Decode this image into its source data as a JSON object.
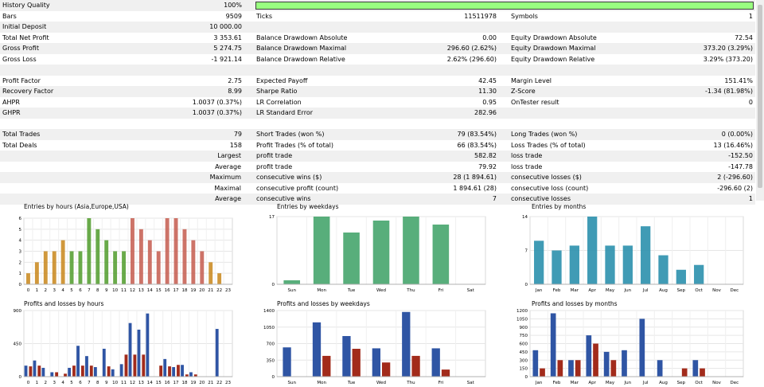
{
  "report": {
    "history_quality": {
      "label": "History Quality",
      "value": "100%"
    },
    "rows": [
      [
        [
          "Bars",
          "9509"
        ],
        [
          "Ticks",
          "11511978"
        ],
        [
          "Symbols",
          "1"
        ]
      ],
      [
        [
          "Initial Deposit",
          "10 000.00"
        ],
        null,
        null
      ],
      [
        [
          "Total Net Profit",
          "3 353.61"
        ],
        [
          "Balance Drawdown Absolute",
          "0.00"
        ],
        [
          "Equity Drawdown Absolute",
          "72.54"
        ]
      ],
      [
        [
          "Gross Profit",
          "5 274.75"
        ],
        [
          "Balance Drawdown Maximal",
          "296.60 (2.62%)"
        ],
        [
          "Equity Drawdown Maximal",
          "373.20 (3.29%)"
        ]
      ],
      [
        [
          "Gross Loss",
          "-1 921.14"
        ],
        [
          "Balance Drawdown Relative",
          "2.62% (296.60)"
        ],
        [
          "Equity Drawdown Relative",
          "3.29% (373.20)"
        ]
      ],
      null,
      [
        [
          "Profit Factor",
          "2.75"
        ],
        [
          "Expected Payoff",
          "42.45"
        ],
        [
          "Margin Level",
          "151.41%"
        ]
      ],
      [
        [
          "Recovery Factor",
          "8.99"
        ],
        [
          "Sharpe Ratio",
          "11.30"
        ],
        [
          "Z-Score",
          "-1.34 (81.98%)"
        ]
      ],
      [
        [
          "AHPR",
          "1.0037 (0.37%)"
        ],
        [
          "LR Correlation",
          "0.95"
        ],
        [
          "OnTester result",
          "0"
        ]
      ],
      [
        [
          "GHPR",
          "1.0037 (0.37%)"
        ],
        [
          "LR Standard Error",
          "282.96"
        ],
        null
      ],
      null,
      [
        [
          "Total Trades",
          "79"
        ],
        [
          "Short Trades (won %)",
          "79 (83.54%)"
        ],
        [
          "Long Trades (won %)",
          "0 (0.00%)"
        ]
      ],
      [
        [
          "Total Deals",
          "158"
        ],
        [
          "Profit Trades (% of total)",
          "66 (83.54%)"
        ],
        [
          "Loss Trades (% of total)",
          "13 (16.46%)"
        ]
      ],
      [
        [
          "Largest",
          ""
        ],
        [
          "profit trade",
          "582.82"
        ],
        [
          "loss trade",
          "-152.50"
        ]
      ],
      [
        [
          "Average",
          ""
        ],
        [
          "profit trade",
          "79.92"
        ],
        [
          "loss trade",
          "-147.78"
        ]
      ],
      [
        [
          "Maximum",
          ""
        ],
        [
          "consecutive wins ($)",
          "28 (1 894.61)"
        ],
        [
          "consecutive losses ($)",
          "2 (-296.60)"
        ]
      ],
      [
        [
          "Maximal",
          ""
        ],
        [
          "consecutive profit (count)",
          "1 894.61 (28)"
        ],
        [
          "consecutive loss (count)",
          "-296.60 (2)"
        ]
      ],
      [
        [
          "Average",
          ""
        ],
        [
          "consecutive wins",
          "7"
        ],
        [
          "consecutive losses",
          "1"
        ]
      ]
    ]
  },
  "colors": {
    "loss": "#a22b1b",
    "profit": "#2f55a4"
  },
  "charts": {
    "hours": {
      "title": "Entries by hours (Asia,Europe,USA)",
      "y_ticks": [
        "0",
        "1",
        "2",
        "3",
        "4",
        "5",
        "6"
      ],
      "categories": [
        "0",
        "1",
        "2",
        "3",
        "4",
        "5",
        "6",
        "7",
        "8",
        "9",
        "10",
        "11",
        "12",
        "13",
        "14",
        "15",
        "16",
        "17",
        "18",
        "19",
        "20",
        "21",
        "22",
        "23"
      ],
      "values": [
        1,
        2,
        3,
        3,
        4,
        3,
        3,
        6,
        5,
        4,
        3,
        3,
        6,
        5,
        4,
        3,
        6,
        6,
        5,
        4,
        3,
        2,
        1,
        0
      ],
      "colors": [
        "#c8861a",
        "#c8861a",
        "#c8861a",
        "#c8861a",
        "#c8861a",
        "#4f9b2a",
        "#4f9b2a",
        "#4f9b2a",
        "#4f9b2a",
        "#4f9b2a",
        "#4f9b2a",
        "#4f9b2a",
        "#c45a4e",
        "#c45a4e",
        "#c45a4e",
        "#c45a4e",
        "#c45a4e",
        "#c45a4e",
        "#c45a4e",
        "#c45a4e",
        "#c45a4e",
        "#c8861a",
        "#c8861a",
        "#c8861a"
      ],
      "ylim": [
        0,
        6
      ]
    },
    "weekdays": {
      "title": "Entries by weekdays",
      "y_ticks": [
        "0",
        "17"
      ],
      "categories": [
        "Sun",
        "Mon",
        "Tue",
        "Wed",
        "Thu",
        "Fri",
        "Sat"
      ],
      "values": [
        1,
        17,
        13,
        16,
        17,
        15,
        0
      ],
      "ylim": [
        0,
        17
      ],
      "color": "#2e9a5a"
    },
    "months": {
      "title": "Entries by months",
      "y_ticks": [
        "0",
        "7",
        "14"
      ],
      "categories": [
        "Jan",
        "Feb",
        "Mar",
        "Apr",
        "May",
        "Jun",
        "Jul",
        "Aug",
        "Sep",
        "Oct",
        "Nov",
        "Dec"
      ],
      "values": [
        9,
        7,
        8,
        14,
        8,
        8,
        12,
        6,
        3,
        4,
        0,
        0
      ],
      "ylim": [
        0,
        14
      ],
      "color": "#1f8aa8"
    },
    "pl_hours": {
      "title": "Profits and losses by hours",
      "y_ticks": [
        "0",
        "450",
        "900"
      ],
      "categories": [
        "0",
        "1",
        "2",
        "3",
        "4",
        "5",
        "6",
        "7",
        "8",
        "9",
        "10",
        "11",
        "12",
        "13",
        "14",
        "15",
        "16",
        "17",
        "18",
        "19",
        "20",
        "21",
        "22",
        "23"
      ],
      "profits": [
        150,
        220,
        120,
        60,
        0,
        120,
        420,
        280,
        130,
        380,
        100,
        170,
        730,
        640,
        860,
        0,
        240,
        130,
        160,
        60,
        0,
        0,
        650,
        0
      ],
      "losses": [
        140,
        150,
        0,
        60,
        40,
        150,
        150,
        150,
        0,
        140,
        0,
        300,
        300,
        300,
        0,
        150,
        140,
        160,
        30,
        30,
        0,
        0,
        0,
        0
      ],
      "ylim": [
        0,
        900
      ]
    },
    "pl_weekdays": {
      "title": "Profits and losses by weekdays",
      "y_ticks": [
        "0",
        "350",
        "700",
        "1050",
        "1400"
      ],
      "categories": [
        "Sun",
        "Mon",
        "Tue",
        "Wed",
        "Thu",
        "Fri",
        "Sat"
      ],
      "profits": [
        620,
        1150,
        860,
        600,
        1370,
        600,
        0
      ],
      "losses": [
        0,
        440,
        590,
        300,
        440,
        150,
        0
      ],
      "ylim": [
        0,
        1400
      ]
    },
    "pl_months": {
      "title": "Profits and losses by months",
      "y_ticks": [
        "0",
        "150",
        "300",
        "450",
        "600",
        "750",
        "900",
        "1050",
        "1200"
      ],
      "categories": [
        "Jan",
        "Feb",
        "Mar",
        "Apr",
        "May",
        "Jun",
        "Jul",
        "Aug",
        "Sep",
        "Oct",
        "Nov",
        "Dec"
      ],
      "profits": [
        480,
        1150,
        300,
        750,
        450,
        480,
        1050,
        300,
        0,
        300,
        0,
        0
      ],
      "losses": [
        150,
        300,
        300,
        600,
        300,
        0,
        0,
        0,
        150,
        150,
        0,
        0
      ],
      "ylim": [
        0,
        1200
      ]
    }
  }
}
